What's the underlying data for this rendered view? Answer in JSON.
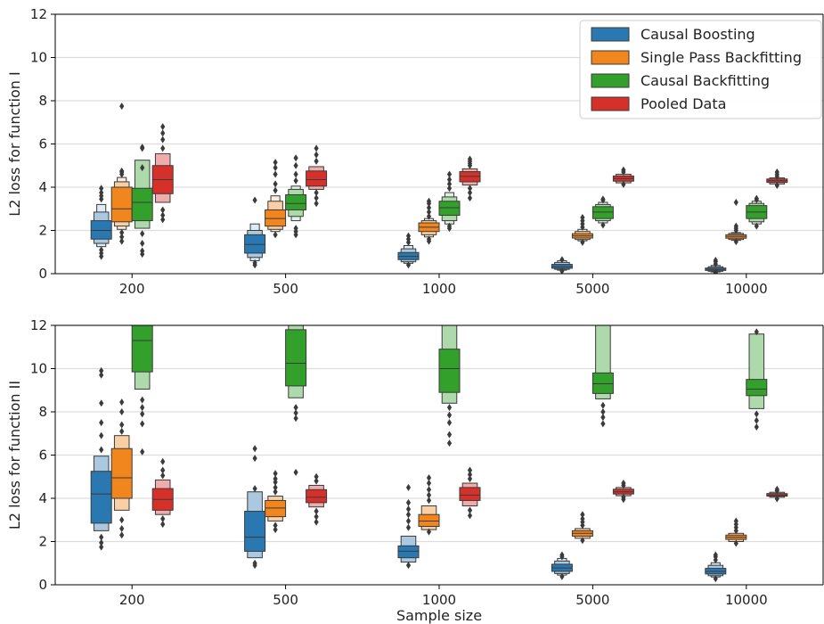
{
  "chart_data": [
    {
      "type": "boxen",
      "ylabel": "L2 loss for function I",
      "xlabel": "",
      "ylim": [
        0,
        12
      ],
      "yticks": [
        0,
        2,
        4,
        6,
        8,
        10,
        12
      ],
      "grid": "y",
      "legend_position": "top-right",
      "categories": [
        "200",
        "500",
        "1000",
        "5000",
        "10000"
      ],
      "series": [
        {
          "name": "Causal Boosting",
          "color": "#2a78b2",
          "boxes": [
            {
              "median": 2.0,
              "levels": [
                [
                  1.6,
                  2.45
                ],
                [
                  1.4,
                  2.85
                ],
                [
                  1.25,
                  3.2
                ]
              ],
              "outliers": [
                3.45,
                3.6,
                3.75,
                3.95,
                1.1,
                0.95,
                0.8
              ]
            },
            {
              "median": 1.35,
              "levels": [
                [
                  0.95,
                  1.8
                ],
                [
                  0.75,
                  2.0
                ],
                [
                  0.6,
                  2.3
                ]
              ],
              "outliers": [
                3.4,
                0.5,
                0.4
              ]
            },
            {
              "median": 0.8,
              "levels": [
                [
                  0.65,
                  0.98
                ],
                [
                  0.55,
                  1.15
                ],
                [
                  0.48,
                  1.3
                ]
              ],
              "outliers": [
                1.45,
                1.6,
                1.75,
                0.4
              ]
            },
            {
              "median": 0.33,
              "levels": [
                [
                  0.25,
                  0.43
                ],
                [
                  0.2,
                  0.52
                ],
                [
                  0.16,
                  0.6
                ]
              ],
              "outliers": [
                0.65,
                0.12
              ]
            },
            {
              "median": 0.2,
              "levels": [
                [
                  0.15,
                  0.26
                ],
                [
                  0.11,
                  0.32
                ],
                [
                  0.08,
                  0.38
                ]
              ],
              "outliers": [
                0.45,
                0.55,
                0.62,
                0.05
              ]
            }
          ]
        },
        {
          "name": "Single Pass Backfitting",
          "color": "#f0861d",
          "boxes": [
            {
              "median": 3.0,
              "levels": [
                [
                  2.4,
                  4.0
                ],
                [
                  2.2,
                  4.25
                ],
                [
                  2.05,
                  4.45
                ]
              ],
              "outliers": [
                4.6,
                4.7,
                4.75,
                7.75,
                1.9,
                1.7,
                1.5
              ]
            },
            {
              "median": 2.55,
              "levels": [
                [
                  2.2,
                  2.95
                ],
                [
                  2.05,
                  3.35
                ],
                [
                  1.95,
                  3.6
                ]
              ],
              "outliers": [
                3.85,
                4.15,
                4.6,
                4.9,
                5.15,
                1.8
              ]
            },
            {
              "median": 2.15,
              "levels": [
                [
                  1.95,
                  2.35
                ],
                [
                  1.8,
                  2.45
                ],
                [
                  1.7,
                  2.55
                ]
              ],
              "outliers": [
                2.65,
                2.85,
                3.05,
                3.25,
                3.35,
                1.6,
                1.5
              ]
            },
            {
              "median": 1.75,
              "levels": [
                [
                  1.65,
                  1.85
                ],
                [
                  1.58,
                  1.95
                ],
                [
                  1.52,
                  2.05
                ]
              ],
              "outliers": [
                2.15,
                2.3,
                2.45,
                2.6,
                1.45
              ]
            },
            {
              "median": 1.72,
              "levels": [
                [
                  1.64,
                  1.8
                ],
                [
                  1.58,
                  1.86
                ],
                [
                  1.54,
                  1.9
                ]
              ],
              "outliers": [
                2.0,
                2.1,
                2.2,
                3.3,
                1.48
              ]
            }
          ]
        },
        {
          "name": "Causal Backfitting",
          "color": "#33a02c",
          "boxes": [
            {
              "median": 3.3,
              "levels": [
                [
                  2.45,
                  3.95
                ],
                [
                  2.1,
                  5.25
                ]
              ],
              "outliers": [
                4.9,
                5.8,
                5.85,
                1.85,
                1.4,
                1.05,
                0.9
              ]
            },
            {
              "median": 3.25,
              "levels": [
                [
                  2.95,
                  3.65
                ],
                [
                  2.65,
                  3.9
                ],
                [
                  2.45,
                  4.05
                ]
              ],
              "outliers": [
                4.3,
                4.6,
                5.0,
                5.35,
                2.1,
                1.95,
                1.8
              ]
            },
            {
              "median": 3.05,
              "levels": [
                [
                  2.7,
                  3.35
                ],
                [
                  2.45,
                  3.55
                ],
                [
                  2.3,
                  3.75
                ]
              ],
              "outliers": [
                3.95,
                4.15,
                4.35,
                4.6,
                2.2,
                2.1
              ]
            },
            {
              "median": 2.85,
              "levels": [
                [
                  2.55,
                  3.1
                ],
                [
                  2.45,
                  3.2
                ],
                [
                  2.35,
                  3.3
                ]
              ],
              "outliers": [
                3.4,
                3.45,
                2.25
              ]
            },
            {
              "median": 2.85,
              "levels": [
                [
                  2.55,
                  3.15
                ],
                [
                  2.4,
                  3.25
                ],
                [
                  2.3,
                  3.35
                ]
              ],
              "outliers": [
                3.42,
                3.48,
                2.2
              ]
            }
          ]
        },
        {
          "name": "Pooled Data",
          "color": "#d6302b",
          "boxes": [
            {
              "median": 4.35,
              "levels": [
                [
                  3.7,
                  5.0
                ],
                [
                  3.3,
                  5.55
                ]
              ],
              "outliers": [
                5.8,
                6.2,
                6.5,
                6.8,
                2.95,
                2.7,
                2.5
              ]
            },
            {
              "median": 4.35,
              "levels": [
                [
                  4.05,
                  4.75
                ],
                [
                  3.9,
                  4.95
                ]
              ],
              "outliers": [
                5.2,
                5.5,
                5.8,
                3.75,
                3.5,
                3.25
              ]
            },
            {
              "median": 4.5,
              "levels": [
                [
                  4.25,
                  4.72
                ],
                [
                  4.1,
                  4.85
                ]
              ],
              "outliers": [
                5.0,
                5.1,
                5.2,
                5.3,
                3.95,
                3.75,
                3.5
              ]
            },
            {
              "median": 4.4,
              "levels": [
                [
                  4.28,
                  4.52
                ],
                [
                  4.2,
                  4.6
                ]
              ],
              "outliers": [
                4.7,
                4.8,
                4.13
              ]
            },
            {
              "median": 4.3,
              "levels": [
                [
                  4.22,
                  4.38
                ],
                [
                  4.15,
                  4.43
                ]
              ],
              "outliers": [
                4.5,
                4.6,
                4.7,
                4.08
              ]
            }
          ]
        }
      ]
    },
    {
      "type": "boxen",
      "ylabel": "L2 loss for function II",
      "xlabel": "Sample size",
      "ylim": [
        0,
        12
      ],
      "yticks": [
        0,
        2,
        4,
        6,
        8,
        10,
        12
      ],
      "grid": "y",
      "categories": [
        "200",
        "500",
        "1000",
        "5000",
        "10000"
      ],
      "series": [
        {
          "name": "Causal Boosting",
          "color": "#2a78b2",
          "boxes": [
            {
              "median": 4.2,
              "levels": [
                [
                  2.85,
                  5.25
                ],
                [
                  2.5,
                  5.95
                ]
              ],
              "outliers": [
                6.25,
                6.9,
                7.5,
                8.4,
                9.7,
                9.9,
                2.2,
                1.95,
                1.75
              ]
            },
            {
              "median": 2.2,
              "levels": [
                [
                  1.55,
                  3.4
                ],
                [
                  1.25,
                  4.3
                ]
              ],
              "outliers": [
                4.45,
                5.85,
                6.3,
                1.0,
                0.9
              ]
            },
            {
              "median": 1.55,
              "levels": [
                [
                  1.25,
                  1.8
                ],
                [
                  1.05,
                  2.25
                ]
              ],
              "outliers": [
                2.65,
                2.95,
                3.25,
                3.5,
                3.8,
                4.5,
                0.9
              ]
            },
            {
              "median": 0.78,
              "levels": [
                [
                  0.62,
                  0.95
                ],
                [
                  0.52,
                  1.1
                ],
                [
                  0.45,
                  1.22
                ]
              ],
              "outliers": [
                1.3,
                1.38,
                0.38
              ]
            },
            {
              "median": 0.62,
              "levels": [
                [
                  0.5,
                  0.76
                ],
                [
                  0.42,
                  0.9
                ],
                [
                  0.36,
                  1.02
                ]
              ],
              "outliers": [
                1.15,
                1.3,
                1.38,
                0.28
              ]
            }
          ]
        },
        {
          "name": "Single Pass Backfitting",
          "color": "#f0861d",
          "boxes": [
            {
              "median": 4.95,
              "levels": [
                [
                  4.0,
                  6.3
                ],
                [
                  3.45,
                  6.9
                ]
              ],
              "outliers": [
                7.1,
                7.4,
                8.0,
                8.45,
                3.0,
                2.6,
                2.3
              ]
            },
            {
              "median": 3.55,
              "levels": [
                [
                  3.15,
                  3.9
                ],
                [
                  2.95,
                  4.1
                ]
              ],
              "outliers": [
                4.3,
                4.5,
                4.75,
                4.9,
                5.15,
                2.75,
                2.55
              ]
            },
            {
              "median": 2.95,
              "levels": [
                [
                  2.7,
                  3.25
                ],
                [
                  2.55,
                  3.65
                ]
              ],
              "outliers": [
                3.9,
                4.15,
                4.4,
                4.7,
                4.95,
                2.45
              ]
            },
            {
              "median": 2.38,
              "levels": [
                [
                  2.25,
                  2.5
                ],
                [
                  2.15,
                  2.6
                ]
              ],
              "outliers": [
                2.75,
                2.9,
                3.05,
                3.25,
                2.05
              ]
            },
            {
              "median": 2.2,
              "levels": [
                [
                  2.1,
                  2.3
                ],
                [
                  2.0,
                  2.38
                ]
              ],
              "outliers": [
                2.5,
                2.65,
                2.8,
                2.95,
                1.92
              ]
            }
          ]
        },
        {
          "name": "Causal Backfitting",
          "color": "#33a02c",
          "boxes": [
            {
              "median": 11.3,
              "levels": [
                [
                  9.85,
                  12.6
                ],
                [
                  9.05,
                  13.4
                ]
              ],
              "outliers": [
                8.55,
                8.2,
                7.9,
                7.45,
                6.15
              ]
            },
            {
              "median": 10.25,
              "levels": [
                [
                  9.2,
                  11.8
                ],
                [
                  8.65,
                  12.6
                ]
              ],
              "outliers": [
                8.2,
                7.95,
                7.7,
                5.2
              ]
            },
            {
              "median": 10.0,
              "levels": [
                [
                  8.9,
                  10.9
                ],
                [
                  8.4,
                  12.3
                ]
              ],
              "outliers": [
                8.2,
                7.85,
                7.5,
                6.95,
                6.55
              ]
            },
            {
              "median": 9.3,
              "levels": [
                [
                  8.85,
                  9.8
                ],
                [
                  8.6,
                  12.0
                ]
              ],
              "outliers": [
                8.3,
                8.0,
                7.75,
                7.45
              ]
            },
            {
              "median": 9.05,
              "levels": [
                [
                  8.75,
                  9.5
                ],
                [
                  8.15,
                  11.6
                ]
              ],
              "outliers": [
                11.7,
                7.9,
                7.6,
                7.3
              ]
            }
          ]
        },
        {
          "name": "Pooled Data",
          "color": "#d6302b",
          "boxes": [
            {
              "median": 3.95,
              "levels": [
                [
                  3.45,
                  4.45
                ],
                [
                  3.25,
                  4.85
                ]
              ],
              "outliers": [
                5.05,
                5.3,
                5.7,
                3.05,
                2.8
              ]
            },
            {
              "median": 4.05,
              "levels": [
                [
                  3.8,
                  4.4
                ],
                [
                  3.6,
                  4.6
                ]
              ],
              "outliers": [
                4.8,
                5.0,
                3.4,
                3.15,
                2.9
              ]
            },
            {
              "median": 4.15,
              "levels": [
                [
                  3.9,
                  4.5
                ],
                [
                  3.65,
                  4.7
                ]
              ],
              "outliers": [
                4.9,
                5.1,
                5.3,
                3.45,
                3.2
              ]
            },
            {
              "median": 4.3,
              "levels": [
                [
                  4.2,
                  4.42
                ],
                [
                  4.12,
                  4.5
                ]
              ],
              "outliers": [
                4.6,
                4.7,
                4.05,
                3.95
              ]
            },
            {
              "median": 4.15,
              "levels": [
                [
                  4.1,
                  4.22
                ],
                [
                  4.05,
                  4.28
                ]
              ],
              "outliers": [
                4.35,
                4.42,
                3.98
              ]
            }
          ]
        }
      ]
    }
  ]
}
